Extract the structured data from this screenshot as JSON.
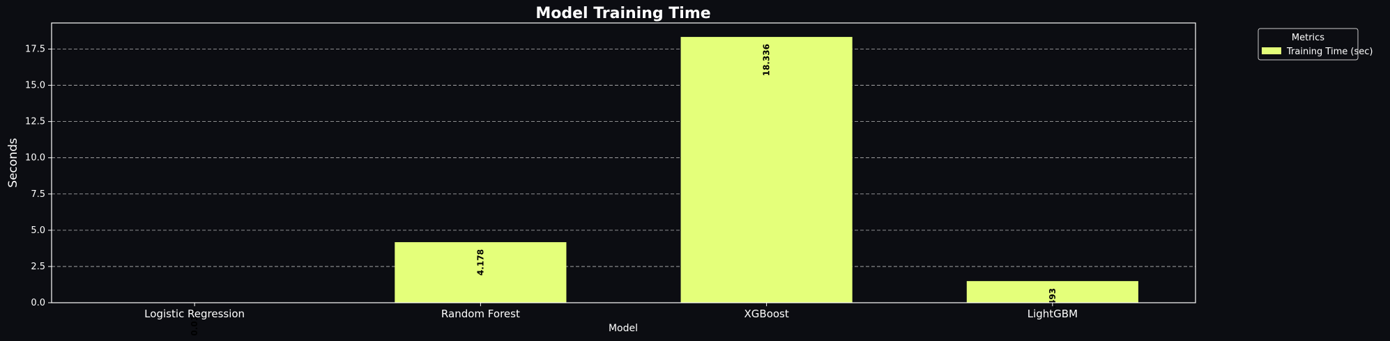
{
  "chart_data": {
    "type": "bar",
    "title": "Model Training Time",
    "xlabel": "Model",
    "ylabel": "Seconds",
    "categories": [
      "Logistic Regression",
      "Random Forest",
      "XGBoost",
      "LightGBM"
    ],
    "series": [
      {
        "name": "Training Time (sec)",
        "values": [
          0.019,
          4.178,
          18.336,
          1.493
        ],
        "labels": [
          "0.019",
          "4.178",
          "18.336",
          "1.493"
        ]
      }
    ],
    "ylim": [
      0,
      19.3
    ],
    "yticks": [
      0,
      2.5,
      5,
      7.5,
      10,
      12.5,
      15,
      17.5
    ],
    "ytick_labels": [
      "0.0",
      "2.5",
      "5.0",
      "7.5",
      "10.0",
      "12.5",
      "15.0",
      "17.5"
    ],
    "grid": true,
    "legend": {
      "title": "Metrics",
      "placement": "outside-top-right"
    }
  },
  "colors": {
    "background": "#0c0d12",
    "bar": "#e4ff7a",
    "text": "#ffffff",
    "grid": "#d8d8d8",
    "value_label": "#000000"
  }
}
